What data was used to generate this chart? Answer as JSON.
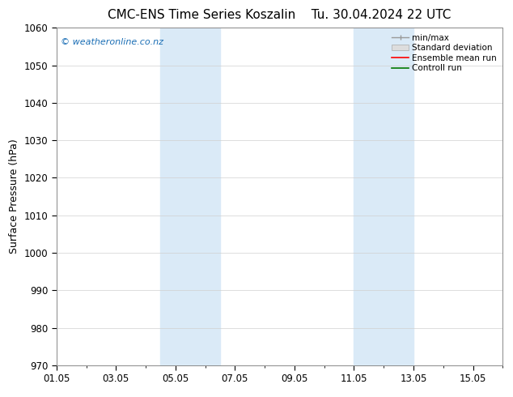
{
  "title_left": "CMC-ENS Time Series Koszalin",
  "title_right": "Tu. 30.04.2024 22 UTC",
  "ylabel": "Surface Pressure (hPa)",
  "ylim": [
    970,
    1060
  ],
  "yticks": [
    970,
    980,
    990,
    1000,
    1010,
    1020,
    1030,
    1040,
    1050,
    1060
  ],
  "xlim": [
    0,
    15
  ],
  "xtick_labels": [
    "01.05",
    "03.05",
    "05.05",
    "07.05",
    "09.05",
    "11.05",
    "13.05",
    "15.05"
  ],
  "xtick_positions": [
    0,
    2,
    4,
    6,
    8,
    10,
    12,
    14
  ],
  "shaded_regions": [
    {
      "x_start": 3.5,
      "x_end": 5.5,
      "color": "#daeaf7"
    },
    {
      "x_start": 10.0,
      "x_end": 12.0,
      "color": "#daeaf7"
    }
  ],
  "watermark": "© weatheronline.co.nz",
  "watermark_color": "#1a6eb5",
  "background_color": "#ffffff",
  "plot_bg_color": "#ffffff",
  "grid_color": "#d0d0d0",
  "legend_items": [
    {
      "label": "min/max",
      "color": "#999999",
      "style": "line_with_caps"
    },
    {
      "label": "Standard deviation",
      "color": "#cccccc",
      "style": "filled"
    },
    {
      "label": "Ensemble mean run",
      "color": "#ff0000",
      "style": "line"
    },
    {
      "label": "Controll run",
      "color": "#007700",
      "style": "line"
    }
  ],
  "title_fontsize": 11,
  "axis_fontsize": 9,
  "tick_fontsize": 8.5,
  "watermark_fontsize": 8,
  "legend_fontsize": 7.5,
  "fig_width": 6.34,
  "fig_height": 4.9,
  "dpi": 100
}
